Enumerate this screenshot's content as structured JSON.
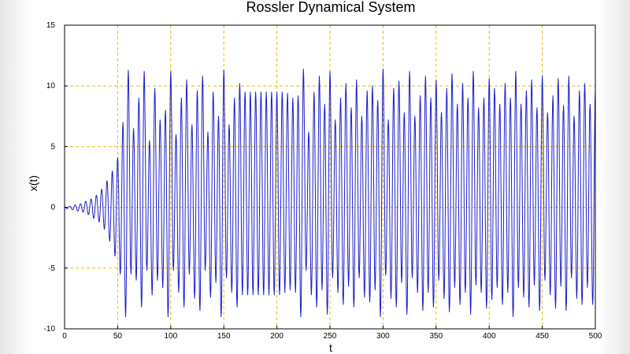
{
  "chart_data": {
    "type": "line",
    "title": "Rossler Dynamical System",
    "xlabel": "t",
    "ylabel": "x(t)",
    "xlim": [
      0,
      500
    ],
    "ylim": [
      -10,
      15
    ],
    "xticks": [
      0,
      50,
      100,
      150,
      200,
      250,
      300,
      350,
      400,
      450,
      500
    ],
    "yticks": [
      -10,
      -5,
      0,
      5,
      10,
      15
    ],
    "grid": true,
    "colors": {
      "line": "#1e1ecc",
      "grid": "#e6c200",
      "axis": "#000000"
    },
    "series": [
      {
        "peaks": [
          [
            5,
            0.1
          ],
          [
            10,
            0.2
          ],
          [
            15,
            0.3
          ],
          [
            20,
            0.5
          ],
          [
            25,
            0.7
          ],
          [
            30,
            1.0
          ],
          [
            35,
            1.5
          ],
          [
            40,
            2.2
          ],
          [
            45,
            3.0
          ],
          [
            50,
            4.1
          ],
          [
            55,
            7.0
          ],
          [
            60,
            11.3
          ],
          [
            65,
            6.5
          ],
          [
            70,
            9.0
          ],
          [
            75,
            11.2
          ],
          [
            80,
            5.5
          ],
          [
            85,
            9.8
          ],
          [
            90,
            7.2
          ],
          [
            95,
            8.0
          ],
          [
            100,
            11.2
          ],
          [
            105,
            6.0
          ],
          [
            110,
            9.0
          ],
          [
            115,
            10.5
          ],
          [
            120,
            6.8
          ],
          [
            125,
            9.6
          ],
          [
            130,
            10.8
          ],
          [
            135,
            6.2
          ],
          [
            140,
            9.5
          ],
          [
            145,
            7.5
          ],
          [
            150,
            11.3
          ],
          [
            155,
            6.8
          ],
          [
            160,
            9.0
          ],
          [
            165,
            10.2
          ],
          [
            170,
            9.5
          ],
          [
            175,
            9.5
          ],
          [
            180,
            9.5
          ],
          [
            185,
            9.5
          ],
          [
            190,
            9.5
          ],
          [
            195,
            9.5
          ],
          [
            200,
            9.5
          ],
          [
            205,
            9.5
          ],
          [
            210,
            9.4
          ],
          [
            215,
            9.0
          ],
          [
            220,
            9.2
          ],
          [
            225,
            11.4
          ],
          [
            230,
            6.2
          ],
          [
            235,
            9.5
          ],
          [
            240,
            10.8
          ],
          [
            245,
            8.5
          ],
          [
            250,
            11.2
          ],
          [
            255,
            7.2
          ],
          [
            260,
            9.0
          ],
          [
            265,
            10.2
          ],
          [
            270,
            8.2
          ],
          [
            275,
            10.5
          ],
          [
            280,
            7.5
          ],
          [
            285,
            9.6
          ],
          [
            290,
            10.0
          ],
          [
            295,
            8.8
          ],
          [
            300,
            11.4
          ],
          [
            305,
            7.2
          ],
          [
            310,
            9.8
          ],
          [
            315,
            10.4
          ],
          [
            320,
            7.8
          ],
          [
            325,
            11.2
          ],
          [
            330,
            7.5
          ],
          [
            335,
            9.2
          ],
          [
            340,
            10.8
          ],
          [
            345,
            9.0
          ],
          [
            350,
            10.5
          ],
          [
            355,
            7.8
          ],
          [
            360,
            9.8
          ],
          [
            365,
            11.0
          ],
          [
            370,
            8.5
          ],
          [
            375,
            10.2
          ],
          [
            380,
            9.0
          ],
          [
            385,
            11.2
          ],
          [
            390,
            8.2
          ],
          [
            395,
            9.0
          ],
          [
            400,
            10.6
          ],
          [
            405,
            9.8
          ],
          [
            410,
            8.5
          ],
          [
            415,
            10.2
          ],
          [
            420,
            9.0
          ],
          [
            425,
            11.2
          ],
          [
            430,
            8.5
          ],
          [
            435,
            9.6
          ],
          [
            440,
            10.5
          ],
          [
            445,
            8.2
          ],
          [
            450,
            10.8
          ],
          [
            455,
            7.8
          ],
          [
            460,
            9.2
          ],
          [
            465,
            10.6
          ],
          [
            470,
            8.4
          ],
          [
            475,
            10.8
          ],
          [
            480,
            7.5
          ],
          [
            485,
            9.6
          ],
          [
            490,
            10.2
          ],
          [
            495,
            8.5
          ],
          [
            500,
            9.6
          ]
        ],
        "troughs": [
          [
            2.5,
            -0.1
          ],
          [
            7.5,
            -0.2
          ],
          [
            12.5,
            -0.3
          ],
          [
            17.5,
            -0.4
          ],
          [
            22.5,
            -0.6
          ],
          [
            27.5,
            -0.9
          ],
          [
            32.5,
            -1.2
          ],
          [
            37.5,
            -1.8
          ],
          [
            42.5,
            -2.8
          ],
          [
            47.5,
            -4.0
          ],
          [
            52.5,
            -5.5
          ],
          [
            57.5,
            -9.0
          ],
          [
            62.5,
            -5.5
          ],
          [
            67.5,
            -6.0
          ],
          [
            72.5,
            -8.2
          ],
          [
            77.5,
            -5.2
          ],
          [
            82.5,
            -7.2
          ],
          [
            87.5,
            -6.0
          ],
          [
            92.5,
            -6.6
          ],
          [
            97.5,
            -9.0
          ],
          [
            102.5,
            -5.2
          ],
          [
            107.5,
            -7.0
          ],
          [
            112.5,
            -8.2
          ],
          [
            117.5,
            -5.5
          ],
          [
            122.5,
            -7.5
          ],
          [
            127.5,
            -8.5
          ],
          [
            132.5,
            -5.2
          ],
          [
            137.5,
            -7.4
          ],
          [
            142.5,
            -6.2
          ],
          [
            147.5,
            -9.0
          ],
          [
            152.5,
            -5.8
          ],
          [
            157.5,
            -7.0
          ],
          [
            162.5,
            -8.2
          ],
          [
            167.5,
            -7.2
          ],
          [
            172.5,
            -7.2
          ],
          [
            177.5,
            -7.2
          ],
          [
            182.5,
            -7.2
          ],
          [
            187.5,
            -7.2
          ],
          [
            192.5,
            -7.2
          ],
          [
            197.5,
            -7.2
          ],
          [
            202.5,
            -7.2
          ],
          [
            207.5,
            -7.0
          ],
          [
            212.5,
            -6.8
          ],
          [
            217.5,
            -7.0
          ],
          [
            222.5,
            -9.0
          ],
          [
            227.5,
            -5.2
          ],
          [
            232.5,
            -7.2
          ],
          [
            237.5,
            -8.2
          ],
          [
            242.5,
            -6.8
          ],
          [
            247.5,
            -8.8
          ],
          [
            252.5,
            -5.8
          ],
          [
            257.5,
            -7.0
          ],
          [
            262.5,
            -8.0
          ],
          [
            267.5,
            -6.5
          ],
          [
            272.5,
            -8.2
          ],
          [
            277.5,
            -5.8
          ],
          [
            282.5,
            -7.4
          ],
          [
            287.5,
            -7.8
          ],
          [
            292.5,
            -6.8
          ],
          [
            297.5,
            -9.0
          ],
          [
            302.5,
            -5.6
          ],
          [
            307.5,
            -7.5
          ],
          [
            312.5,
            -8.2
          ],
          [
            317.5,
            -6.2
          ],
          [
            322.5,
            -8.8
          ],
          [
            327.5,
            -5.8
          ],
          [
            332.5,
            -7.0
          ],
          [
            337.5,
            -8.5
          ],
          [
            342.5,
            -7.0
          ],
          [
            347.5,
            -8.2
          ],
          [
            352.5,
            -6.0
          ],
          [
            357.5,
            -7.5
          ],
          [
            362.5,
            -8.6
          ],
          [
            367.5,
            -6.6
          ],
          [
            372.5,
            -8.0
          ],
          [
            377.5,
            -7.0
          ],
          [
            382.5,
            -8.8
          ],
          [
            387.5,
            -6.4
          ],
          [
            392.5,
            -7.0
          ],
          [
            397.5,
            -8.3
          ],
          [
            402.5,
            -7.6
          ],
          [
            407.5,
            -6.6
          ],
          [
            412.5,
            -8.0
          ],
          [
            417.5,
            -7.0
          ],
          [
            422.5,
            -9.0
          ],
          [
            427.5,
            -6.6
          ],
          [
            432.5,
            -7.4
          ],
          [
            437.5,
            -8.2
          ],
          [
            442.5,
            -6.4
          ],
          [
            447.5,
            -8.5
          ],
          [
            452.5,
            -6.0
          ],
          [
            457.5,
            -7.2
          ],
          [
            462.5,
            -8.3
          ],
          [
            467.5,
            -6.5
          ],
          [
            472.5,
            -8.5
          ],
          [
            477.5,
            -5.8
          ],
          [
            482.5,
            -7.5
          ],
          [
            487.5,
            -8.0
          ],
          [
            492.5,
            -6.6
          ],
          [
            497.5,
            -8.0
          ]
        ]
      }
    ]
  }
}
